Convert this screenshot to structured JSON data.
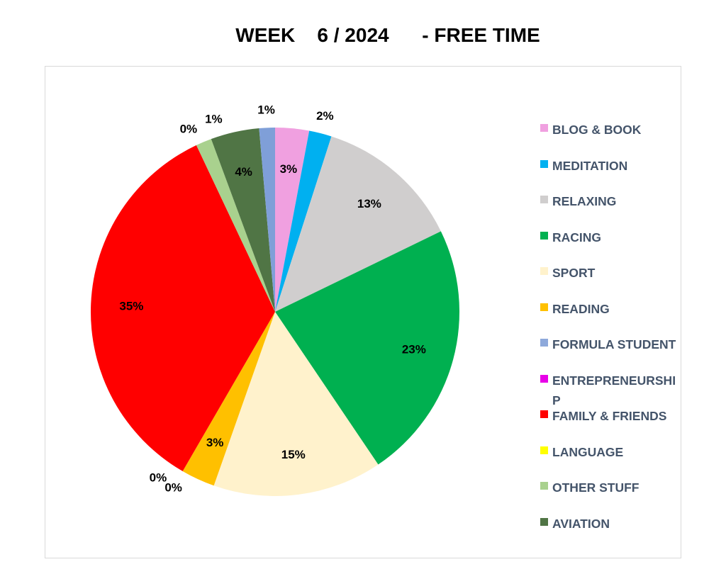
{
  "chart_data": {
    "type": "pie",
    "title": "WEEK    6 / 2024      - FREE TIME",
    "legend_position": "right",
    "slices": [
      {
        "name": "BLOG & BOOK",
        "value": 3,
        "label": "3%",
        "color": "#F0A0E0"
      },
      {
        "name": "MEDITATION",
        "value": 2,
        "label": "2%",
        "color": "#00B0F0"
      },
      {
        "name": "RELAXING",
        "value": 13,
        "label": "13%",
        "color": "#D0CECE"
      },
      {
        "name": "RACING",
        "value": 23,
        "label": "23%",
        "color": "#00B050"
      },
      {
        "name": "SPORT",
        "value": 15,
        "label": "15%",
        "color": "#FFF2CC"
      },
      {
        "name": "READING",
        "value": 3,
        "label": "3%",
        "color": "#FFC000"
      },
      {
        "name": "FORMULA STUDENT",
        "value": 0,
        "label": "0%",
        "color": "#8EA9DB"
      },
      {
        "name": "ENTREPRENEURSHIP",
        "value": 0,
        "label": "0%",
        "color": "#E800E8"
      },
      {
        "name": "FAMILY & FRIENDS",
        "value": 35,
        "label": "35%",
        "color": "#FF0000"
      },
      {
        "name": "LANGUAGE",
        "value": 0,
        "label": "0%",
        "color": "#FFFF00"
      },
      {
        "name": "OTHER STUFF",
        "value": 1.4,
        "label": "1%",
        "color": "#A9D18E"
      },
      {
        "name": "AVIATION",
        "value": 4.3,
        "label": "4%",
        "color": "#507545"
      },
      {
        "name": "",
        "value": 1.4,
        "label": "1%",
        "color": "#7F9FD8"
      }
    ]
  }
}
